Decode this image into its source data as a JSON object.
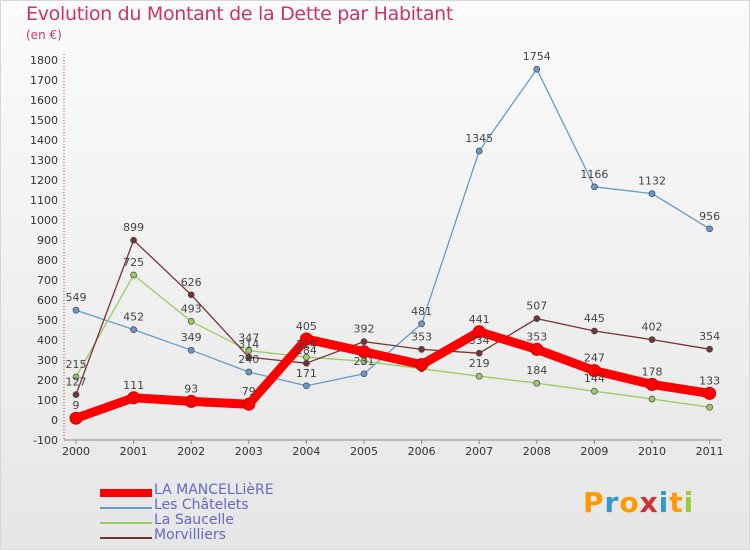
{
  "title": "Evolution du Montant de la Dette par Habitant",
  "unit": "(en €)",
  "logo": {
    "text": "Proxiti",
    "colors": [
      "#ff9900",
      "#3399cc",
      "#ff9900",
      "#cc3333",
      "#3399cc",
      "#ff9900",
      "#99cc33"
    ]
  },
  "chart_data": {
    "type": "line",
    "x": [
      "2000",
      "2001",
      "2002",
      "2003",
      "2004",
      "2005",
      "2006",
      "2007",
      "2008",
      "2009",
      "2010",
      "2011"
    ],
    "ylim": [
      -100,
      1800
    ],
    "yticks": [
      -100,
      0,
      100,
      200,
      300,
      400,
      500,
      600,
      700,
      800,
      900,
      1000,
      1100,
      1200,
      1300,
      1400,
      1500,
      1600,
      1700,
      1800
    ],
    "grid": false,
    "legend_position": "bottom-left",
    "series": [
      {
        "name": "LA MANCELLièRE",
        "color": "#ff0000",
        "emphasis": true,
        "values": [
          9,
          111,
          93,
          79,
          405,
          341,
          277,
          441,
          353,
          247,
          178,
          133
        ],
        "labels": [
          "9",
          "111",
          "93",
          "79",
          "405",
          "",
          "",
          "441",
          "353",
          "247",
          "178",
          "133"
        ]
      },
      {
        "name": "Les Châtelets",
        "color": "#6699cc",
        "values": [
          549,
          452,
          349,
          240,
          171,
          231,
          481,
          1345,
          1754,
          1166,
          1132,
          956
        ],
        "labels": [
          "549",
          "452",
          "349",
          "240",
          "171",
          "231",
          "481",
          "1345",
          "1754",
          "1166",
          "1132",
          "956"
        ]
      },
      {
        "name": "La Saucelle",
        "color": "#99cc66",
        "values": [
          215,
          725,
          493,
          347,
          314,
          294,
          256,
          219,
          184,
          144,
          105,
          64
        ],
        "labels": [
          "215",
          "725",
          "493",
          "347",
          "314",
          "",
          "",
          "219",
          "184",
          "144",
          "",
          ""
        ]
      },
      {
        "name": "Morvilliers",
        "color": "#773333",
        "values": [
          127,
          899,
          626,
          314,
          284,
          392,
          353,
          334,
          507,
          445,
          402,
          354
        ],
        "labels": [
          "127",
          "899",
          "626",
          "314",
          "284",
          "392",
          "353",
          "334",
          "507",
          "445",
          "402",
          "354"
        ]
      }
    ]
  }
}
